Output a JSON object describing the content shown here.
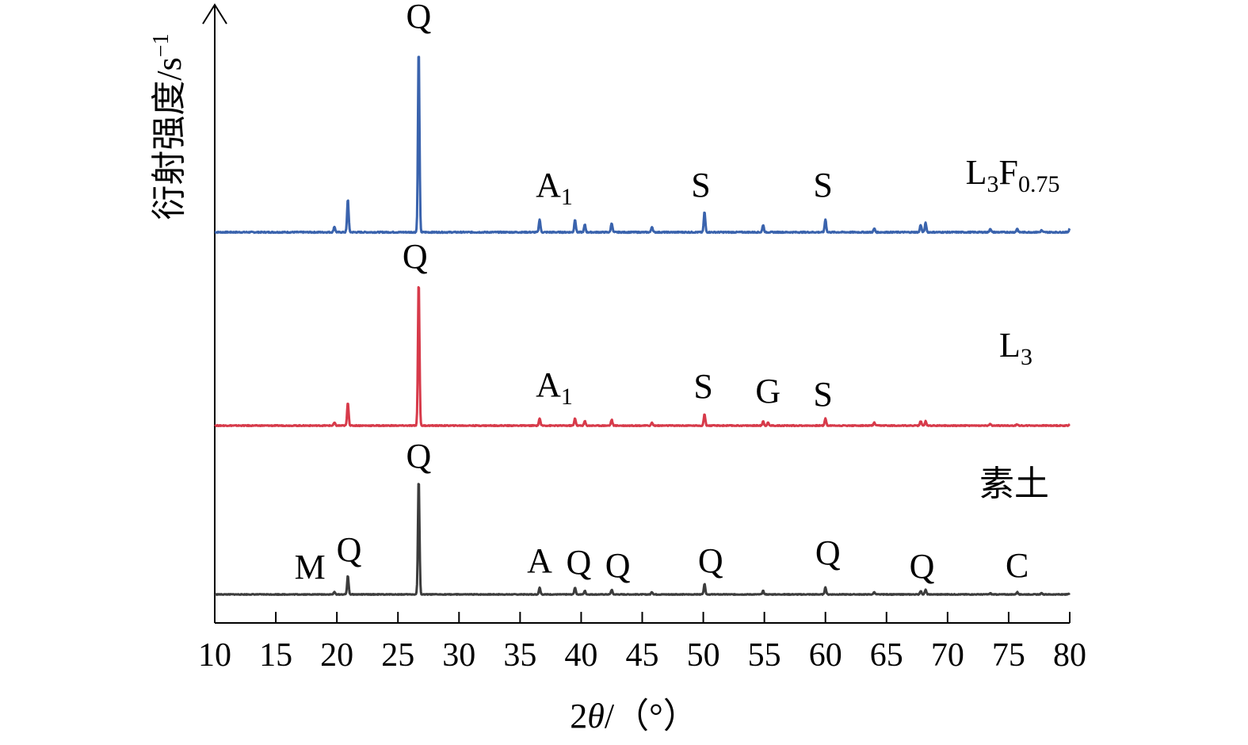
{
  "chart_data": {
    "type": "line",
    "xlabel_parts": {
      "pre": "2",
      "theta": "θ",
      "post": "/（°）"
    },
    "ylabel_parts": {
      "base": "衍射强度/s",
      "sup": "−1"
    },
    "x_ticks": [
      10,
      15,
      20,
      25,
      30,
      35,
      40,
      45,
      50,
      55,
      60,
      65,
      70,
      75,
      80
    ],
    "xlim": [
      10,
      80
    ],
    "grid": false,
    "series": [
      {
        "name": "L3F0.75",
        "name_parts": [
          "L",
          "3",
          "F",
          "0.75"
        ],
        "color": "#3a63ad",
        "peaks": [
          {
            "x": 19.8,
            "h": 0.03
          },
          {
            "x": 20.9,
            "h": 0.18
          },
          {
            "x": 26.7,
            "h": 1.0
          },
          {
            "x": 36.6,
            "h": 0.07
          },
          {
            "x": 39.5,
            "h": 0.07
          },
          {
            "x": 40.3,
            "h": 0.04
          },
          {
            "x": 42.5,
            "h": 0.05
          },
          {
            "x": 45.8,
            "h": 0.03
          },
          {
            "x": 50.1,
            "h": 0.11
          },
          {
            "x": 54.9,
            "h": 0.04
          },
          {
            "x": 60.0,
            "h": 0.07
          },
          {
            "x": 64.0,
            "h": 0.02
          },
          {
            "x": 67.8,
            "h": 0.04
          },
          {
            "x": 68.2,
            "h": 0.05
          },
          {
            "x": 73.5,
            "h": 0.02
          },
          {
            "x": 75.7,
            "h": 0.02
          },
          {
            "x": 77.7,
            "h": 0.01
          },
          {
            "x": 80.0,
            "h": 0.02
          }
        ],
        "labels": [
          {
            "text": "Q",
            "x": 26.7
          },
          {
            "text": "A",
            "sub": "1",
            "x": 37.8
          },
          {
            "text": "S",
            "x": 49.8
          },
          {
            "text": "S",
            "x": 59.8
          }
        ]
      },
      {
        "name": "L3",
        "name_parts": [
          "L",
          "3"
        ],
        "color": "#d73a4a",
        "peaks": [
          {
            "x": 19.8,
            "h": 0.02
          },
          {
            "x": 20.9,
            "h": 0.16
          },
          {
            "x": 26.7,
            "h": 1.0
          },
          {
            "x": 36.6,
            "h": 0.05
          },
          {
            "x": 39.5,
            "h": 0.05
          },
          {
            "x": 40.3,
            "h": 0.03
          },
          {
            "x": 42.5,
            "h": 0.04
          },
          {
            "x": 45.8,
            "h": 0.02
          },
          {
            "x": 50.1,
            "h": 0.08
          },
          {
            "x": 54.9,
            "h": 0.03
          },
          {
            "x": 55.3,
            "h": 0.02
          },
          {
            "x": 60.0,
            "h": 0.05
          },
          {
            "x": 64.0,
            "h": 0.02
          },
          {
            "x": 67.8,
            "h": 0.03
          },
          {
            "x": 68.2,
            "h": 0.03
          },
          {
            "x": 73.5,
            "h": 0.01
          },
          {
            "x": 75.7,
            "h": 0.01
          },
          {
            "x": 80.0,
            "h": 0.01
          }
        ],
        "labels": [
          {
            "text": "Q",
            "x": 26.4
          },
          {
            "text": "A",
            "sub": "1",
            "x": 37.8
          },
          {
            "text": "S",
            "x": 50.0
          },
          {
            "text": "G",
            "x": 55.3
          },
          {
            "text": "S",
            "x": 59.8
          }
        ]
      },
      {
        "name": "素土",
        "name_parts": [
          "素土"
        ],
        "color": "#3c3c3c",
        "peaks": [
          {
            "x": 19.8,
            "h": 0.02
          },
          {
            "x": 20.9,
            "h": 0.16
          },
          {
            "x": 26.7,
            "h": 1.0
          },
          {
            "x": 36.6,
            "h": 0.06
          },
          {
            "x": 39.5,
            "h": 0.06
          },
          {
            "x": 40.3,
            "h": 0.03
          },
          {
            "x": 42.5,
            "h": 0.04
          },
          {
            "x": 45.8,
            "h": 0.02
          },
          {
            "x": 50.1,
            "h": 0.09
          },
          {
            "x": 54.9,
            "h": 0.03
          },
          {
            "x": 60.0,
            "h": 0.06
          },
          {
            "x": 64.0,
            "h": 0.02
          },
          {
            "x": 67.8,
            "h": 0.03
          },
          {
            "x": 68.2,
            "h": 0.04
          },
          {
            "x": 73.5,
            "h": 0.01
          },
          {
            "x": 75.7,
            "h": 0.02
          },
          {
            "x": 77.7,
            "h": 0.01
          },
          {
            "x": 80.0,
            "h": 0.01
          }
        ],
        "labels": [
          {
            "text": "M",
            "x": 17.8
          },
          {
            "text": "Q",
            "x": 21.0
          },
          {
            "text": "Q",
            "x": 26.7
          },
          {
            "text": "A",
            "x": 36.6
          },
          {
            "text": "Q",
            "x": 39.8
          },
          {
            "text": "Q",
            "x": 43.0
          },
          {
            "text": "Q",
            "x": 50.6
          },
          {
            "text": "Q",
            "x": 60.2
          },
          {
            "text": "Q",
            "x": 67.9
          },
          {
            "text": "C",
            "x": 75.7
          }
        ]
      }
    ]
  }
}
